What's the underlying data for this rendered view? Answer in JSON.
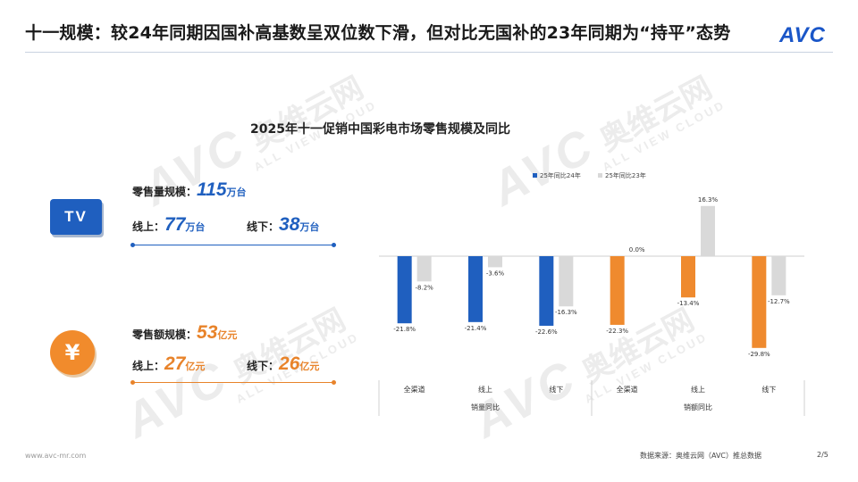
{
  "header": {
    "title": "十一规模：较24年同期因国补高基数呈双位数下滑，但对比无国补的23年同期为“持平”态势",
    "logo": "AVC"
  },
  "watermark": {
    "text": "AVC",
    "cn": "奥维云网",
    "sub": "ALL VIEW CLOUD"
  },
  "tv": {
    "icon_text": "TV",
    "retail_volume_label": "零售量规模：",
    "retail_volume_value": "115",
    "retail_volume_unit": "万台",
    "online_label": "线上：",
    "online_value": "77",
    "online_unit": "万台",
    "offline_label": "线下：",
    "offline_value": "38",
    "offline_unit": "万台"
  },
  "money": {
    "icon_text": "¥",
    "retail_value_label": "零售额规模：",
    "retail_value_value": "53",
    "retail_value_unit": "亿元",
    "online_label": "线上：",
    "online_value": "27",
    "online_unit": "亿元",
    "offline_label": "线下：",
    "offline_value": "26",
    "offline_unit": "亿元"
  },
  "colors": {
    "blue": "#1f5fbf",
    "orange": "#ef8a2e",
    "gray": "#d9d9d9"
  },
  "chart_data": {
    "type": "bar",
    "title": "2025年十一促销中国彩电市场零售规模及同比",
    "categories": [
      "全渠道",
      "线上",
      "线下",
      "全渠道",
      "线上",
      "线下"
    ],
    "groups": [
      {
        "label": "销量同比",
        "categories": [
          "全渠道",
          "线上",
          "线下"
        ]
      },
      {
        "label": "销额同比",
        "categories": [
          "全渠道",
          "线上",
          "线下"
        ]
      }
    ],
    "series": [
      {
        "name": "25年同比24年",
        "values": [
          -21.8,
          -21.4,
          -22.6,
          -22.3,
          -13.4,
          -29.8
        ],
        "labels": [
          "-21.8%",
          "-21.4%",
          "-22.6%",
          "-22.3%",
          "-13.4%",
          "-29.8%"
        ]
      },
      {
        "name": "25年同比23年",
        "values": [
          -8.2,
          -3.6,
          -16.3,
          0.0,
          16.3,
          -12.7
        ],
        "labels": [
          "-8.2%",
          "-3.6%",
          "-16.3%",
          "0.0%",
          "16.3%",
          "-12.7%"
        ]
      }
    ],
    "legend": "top",
    "ylabel": "",
    "xlabel": ""
  },
  "footer": {
    "site": "www.avc-mr.com",
    "source": "数据来源：奥维云网（AVC）推总数据",
    "page": "2/5"
  }
}
